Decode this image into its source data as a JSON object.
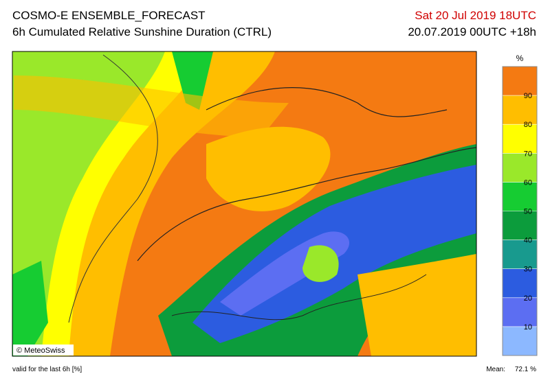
{
  "header": {
    "title": "COSMO-E ENSEMBLE_FORECAST",
    "subtitle": "6h Cumulated Relative Sunshine Duration (CTRL)",
    "valid_time": "Sat 20 Jul 2019 18UTC",
    "run": "20.07.2019 00UTC +18h"
  },
  "colorbar": {
    "unit": "%",
    "ticks": [
      10,
      20,
      30,
      40,
      50,
      60,
      70,
      80,
      90
    ],
    "colors": [
      "#8cb8ff",
      "#5c6ef2",
      "#2c5ce0",
      "#189a8e",
      "#0c9c3c",
      "#16cc32",
      "#9ae82a",
      "#ffff00",
      "#ffbe00",
      "#f47a12"
    ]
  },
  "credit": "© MeteoSwiss",
  "footer": {
    "note": "valid for the last 6h [%]",
    "mean_label": "Mean:",
    "mean_value": "72.1 %"
  }
}
